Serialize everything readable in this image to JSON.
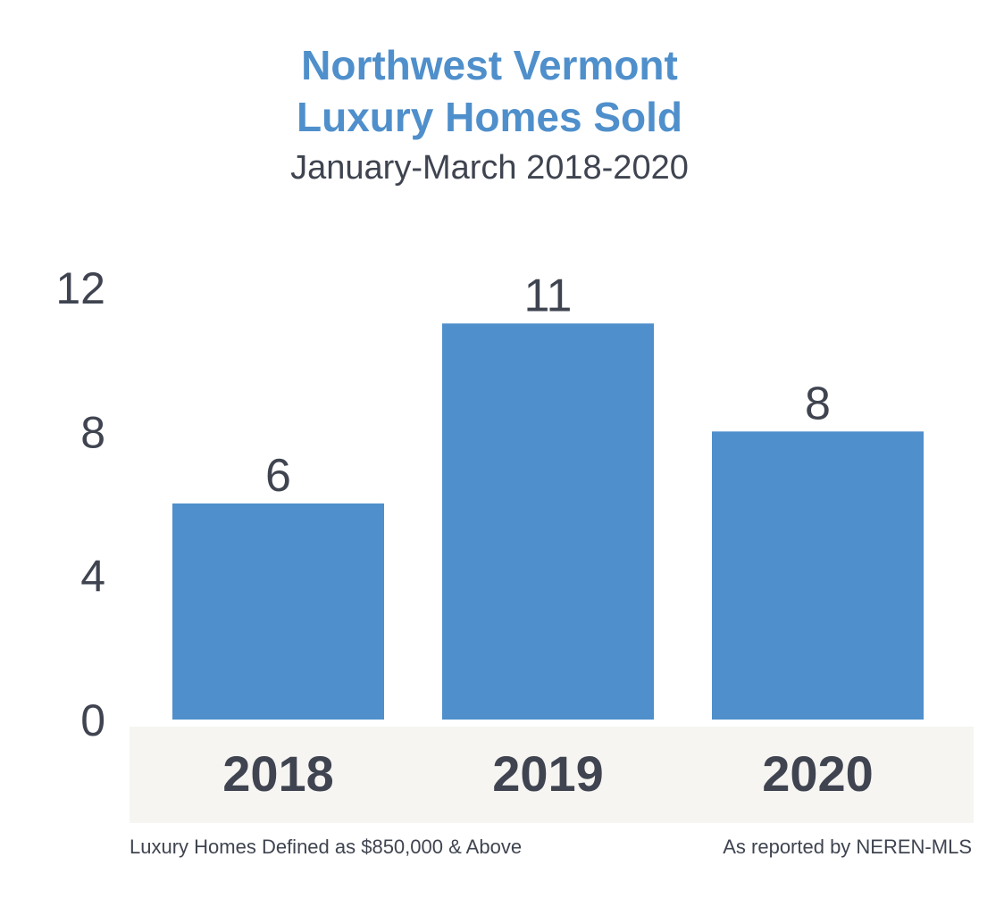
{
  "chart_data": {
    "type": "bar",
    "title": "Northwest Vermont Luxury Homes Sold",
    "title_lines": [
      "Northwest Vermont",
      "Luxury Homes Sold"
    ],
    "subtitle": "January-March 2018-2020",
    "categories": [
      "2018",
      "2019",
      "2020"
    ],
    "values": [
      6,
      11,
      8
    ],
    "data_labels": [
      "6",
      "11",
      "8"
    ],
    "ylim": [
      0,
      12
    ],
    "yticks": [
      "0",
      "4",
      "8",
      "12"
    ],
    "xlabel": "",
    "ylabel": "",
    "grid": false,
    "colors": {
      "bar": "#4f8fcb",
      "title": "#4f8fcb",
      "text": "#3f4450",
      "category_band": "#f7f5f2"
    }
  },
  "footer": {
    "left": "Luxury Homes Defined as $850,000 & Above",
    "right": "As reported by NEREN-MLS"
  }
}
